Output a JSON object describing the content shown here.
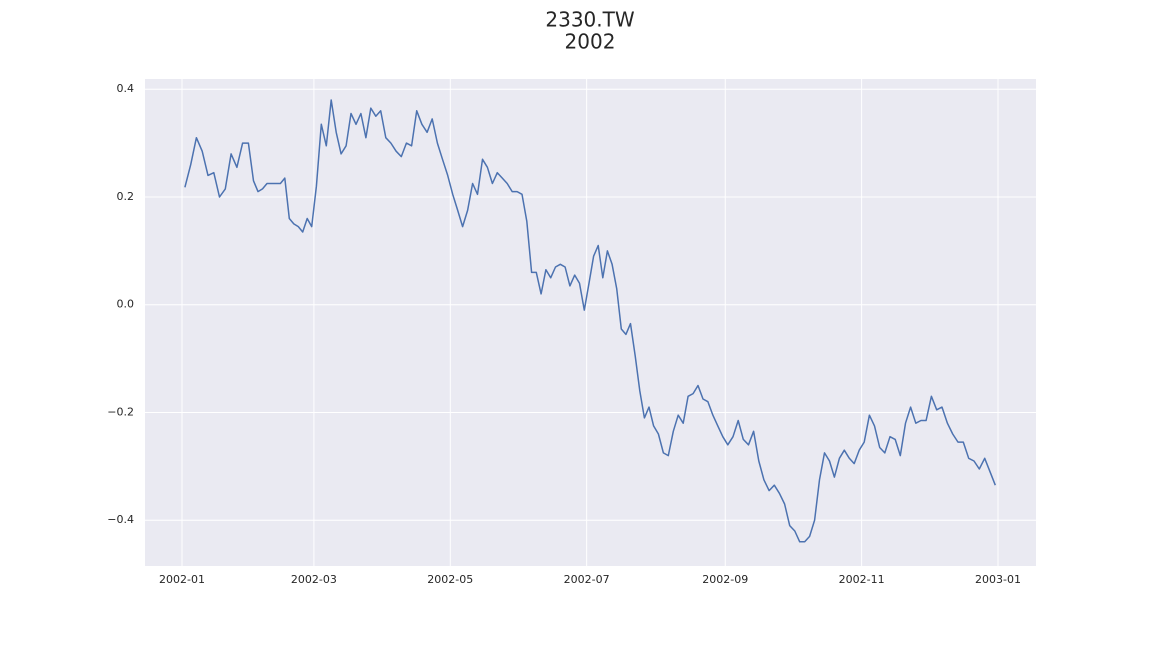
{
  "chart_data": {
    "type": "line",
    "title": "2330.TW",
    "subtitle": "2002",
    "color": "#4c72b0",
    "grid": true,
    "x": [
      "2002-01",
      "2002-01",
      "2002-01",
      "2002-01",
      "2002-01",
      "2002-01",
      "2002-01",
      "2002-01",
      "2002-01",
      "2002-01",
      "2002-01",
      "2002-01",
      "2002-02",
      "2002-02",
      "2002-02",
      "2002-02",
      "2002-02",
      "2002-02",
      "2002-02",
      "2002-02",
      "2002-02",
      "2002-02",
      "2002-02",
      "2002-02",
      "2002-02",
      "2002-02",
      "2002-03",
      "2002-03",
      "2002-03",
      "2002-03",
      "2002-03",
      "2002-03",
      "2002-03",
      "2002-03",
      "2002-03",
      "2002-03",
      "2002-03",
      "2002-03",
      "2002-03",
      "2002-03",
      "2002-04",
      "2002-04",
      "2002-04",
      "2002-04",
      "2002-04",
      "2002-04",
      "2002-04",
      "2002-04",
      "2002-04",
      "2002-04",
      "2002-04",
      "2002-04",
      "2002-04",
      "2002-05",
      "2002-05",
      "2002-05",
      "2002-05",
      "2002-05",
      "2002-05",
      "2002-05",
      "2002-05",
      "2002-05",
      "2002-05",
      "2002-05",
      "2002-05",
      "2002-05",
      "2002-05",
      "2002-06",
      "2002-06",
      "2002-06",
      "2002-06",
      "2002-06",
      "2002-06",
      "2002-06",
      "2002-06",
      "2002-06",
      "2002-06",
      "2002-06",
      "2002-06",
      "2002-06",
      "2002-06",
      "2002-07",
      "2002-07",
      "2002-07",
      "2002-07",
      "2002-07",
      "2002-07",
      "2002-07",
      "2002-07",
      "2002-07",
      "2002-07",
      "2002-07",
      "2002-07",
      "2002-07",
      "2002-07",
      "2002-07",
      "2002-08",
      "2002-08",
      "2002-08",
      "2002-08",
      "2002-08",
      "2002-08",
      "2002-08",
      "2002-08",
      "2002-08",
      "2002-08",
      "2002-08",
      "2002-08",
      "2002-08",
      "2002-08",
      "2002-09",
      "2002-09",
      "2002-09",
      "2002-09",
      "2002-09",
      "2002-09",
      "2002-09",
      "2002-09",
      "2002-09",
      "2002-09",
      "2002-09",
      "2002-09",
      "2002-09",
      "2002-10",
      "2002-10",
      "2002-10",
      "2002-10",
      "2002-10",
      "2002-10",
      "2002-10",
      "2002-10",
      "2002-10",
      "2002-10",
      "2002-10",
      "2002-10",
      "2002-10",
      "2002-10",
      "2002-11",
      "2002-11",
      "2002-11",
      "2002-11",
      "2002-11",
      "2002-11",
      "2002-11",
      "2002-11",
      "2002-11",
      "2002-11",
      "2002-11",
      "2002-11",
      "2002-11",
      "2002-12",
      "2002-12",
      "2002-12",
      "2002-12",
      "2002-12",
      "2002-12",
      "2002-12",
      "2002-12",
      "2002-12",
      "2002-12",
      "2002-12",
      "2002-12",
      "2002-12"
    ],
    "values": [
      0.218,
      0.26,
      0.31,
      0.285,
      0.24,
      0.245,
      0.2,
      0.215,
      0.28,
      0.255,
      0.3,
      0.3,
      0.23,
      0.21,
      0.215,
      0.225,
      0.225,
      0.225,
      0.225,
      0.235,
      0.16,
      0.15,
      0.145,
      0.135,
      0.16,
      0.145,
      0.22,
      0.335,
      0.295,
      0.38,
      0.32,
      0.28,
      0.295,
      0.355,
      0.335,
      0.355,
      0.31,
      0.365,
      0.35,
      0.36,
      0.31,
      0.3,
      0.285,
      0.275,
      0.3,
      0.295,
      0.36,
      0.335,
      0.32,
      0.345,
      0.3,
      0.27,
      0.24,
      0.205,
      0.175,
      0.145,
      0.175,
      0.225,
      0.205,
      0.27,
      0.255,
      0.225,
      0.245,
      0.235,
      0.225,
      0.21,
      0.21,
      0.205,
      0.155,
      0.06,
      0.06,
      0.02,
      0.065,
      0.05,
      0.07,
      0.075,
      0.07,
      0.035,
      0.055,
      0.04,
      -0.01,
      0.04,
      0.09,
      0.11,
      0.05,
      0.1,
      0.075,
      0.03,
      -0.045,
      -0.055,
      -0.035,
      -0.095,
      -0.16,
      -0.21,
      -0.19,
      -0.225,
      -0.24,
      -0.275,
      -0.28,
      -0.235,
      -0.205,
      -0.22,
      -0.17,
      -0.165,
      -0.15,
      -0.175,
      -0.18,
      -0.205,
      -0.225,
      -0.245,
      -0.26,
      -0.245,
      -0.215,
      -0.25,
      -0.26,
      -0.235,
      -0.29,
      -0.325,
      -0.345,
      -0.335,
      -0.35,
      -0.37,
      -0.41,
      -0.42,
      -0.44,
      -0.44,
      -0.43,
      -0.4,
      -0.325,
      -0.275,
      -0.29,
      -0.32,
      -0.285,
      -0.27,
      -0.285,
      -0.295,
      -0.27,
      -0.255,
      -0.205,
      -0.225,
      -0.265,
      -0.275,
      -0.245,
      -0.25,
      -0.28,
      -0.22,
      -0.19,
      -0.22,
      -0.215,
      -0.215,
      -0.17,
      -0.195,
      -0.19,
      -0.22,
      -0.24,
      -0.255,
      -0.255,
      -0.285,
      -0.29,
      -0.305,
      -0.285,
      -0.31,
      -0.335
    ],
    "xticks": [
      "2002-01",
      "2002-03",
      "2002-05",
      "2002-07",
      "2002-09",
      "2002-11",
      "2003-01"
    ],
    "ylim": [
      -0.485,
      0.419
    ],
    "yticks": [
      0.4,
      0.2,
      {
        "value": 0,
        "label": "0.0"
      },
      {
        "value": -0.2,
        "label": "−0.2"
      },
      {
        "value": -0.4,
        "label": "−0.4"
      }
    ]
  }
}
